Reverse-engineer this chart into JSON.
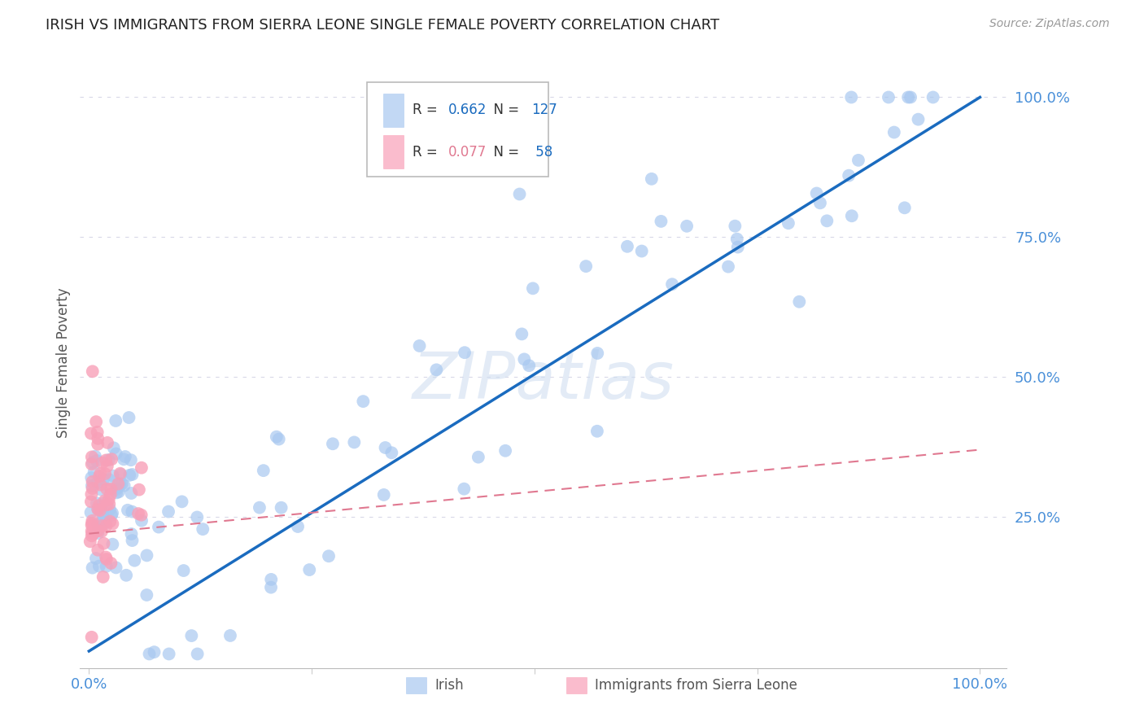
{
  "title": "IRISH VS IMMIGRANTS FROM SIERRA LEONE SINGLE FEMALE POVERTY CORRELATION CHART",
  "source": "Source: ZipAtlas.com",
  "tick_color": "#4a90d9",
  "ylabel": "Single Female Poverty",
  "watermark": "ZIPatlas",
  "legend_irish_R": "0.662",
  "legend_irish_N": "127",
  "legend_sl_R": "0.077",
  "legend_sl_N": "58",
  "irish_color": "#a8c8f0",
  "sl_color": "#f8a0b8",
  "irish_line_color": "#1a6bbf",
  "sl_line_color": "#e07890",
  "background_color": "#ffffff",
  "grid_color": "#d8d8e8"
}
